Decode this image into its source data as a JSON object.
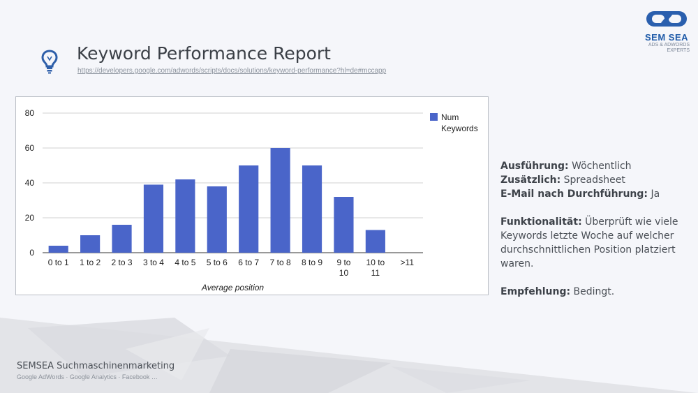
{
  "header": {
    "title": "Keyword Performance Report",
    "url": "https://developers.google.com/adwords/scripts/docs/solutions/keyword-performance?hl=de#mccapp"
  },
  "logo": {
    "brand": "SEM SEA",
    "tagline_1": "ADS & ADWORDS",
    "tagline_2": "EXPERTS"
  },
  "info": {
    "execution_label": "Ausführung:",
    "execution_value": " Wöchentlich",
    "extra_label": "Zusätzlich:",
    "extra_value": " Spreadsheet",
    "email_label": "E-Mail nach Durchführung:",
    "email_value": " Ja",
    "function_label": "Funktionalität:",
    "function_value": " Überprüft wie viele Keywords letzte Woche auf welcher durchschnittlichen Position platziert waren.",
    "recommendation_label": "Empfehlung:",
    "recommendation_value": " Bedingt."
  },
  "footer": {
    "company_bold": "SEMSEA",
    "company_rest": " Suchmaschinenmarketing",
    "services": "Google AdWords · Google Analytics · Facebook …"
  },
  "colors": {
    "bar": "#4a65c9",
    "title": "#3a3f46",
    "brand": "#1e5aa8"
  },
  "chart_data": {
    "type": "bar",
    "categories": [
      "0 to 1",
      "1 to 2",
      "2 to 3",
      "3 to 4",
      "4 to 5",
      "5 to 6",
      "6 to 7",
      "7 to 8",
      "8 to 9",
      "9 to 10",
      "10 to 11",
      ">11"
    ],
    "series": [
      {
        "name": "Num Keywords",
        "values": [
          4,
          10,
          16,
          39,
          42,
          38,
          50,
          60,
          50,
          32,
          13,
          0
        ]
      }
    ],
    "xlabel": "Average position",
    "ylabel": "",
    "ylim": [
      0,
      80
    ],
    "yticks": [
      0,
      20,
      40,
      60,
      80
    ],
    "grid": true,
    "legend_position": "right"
  }
}
